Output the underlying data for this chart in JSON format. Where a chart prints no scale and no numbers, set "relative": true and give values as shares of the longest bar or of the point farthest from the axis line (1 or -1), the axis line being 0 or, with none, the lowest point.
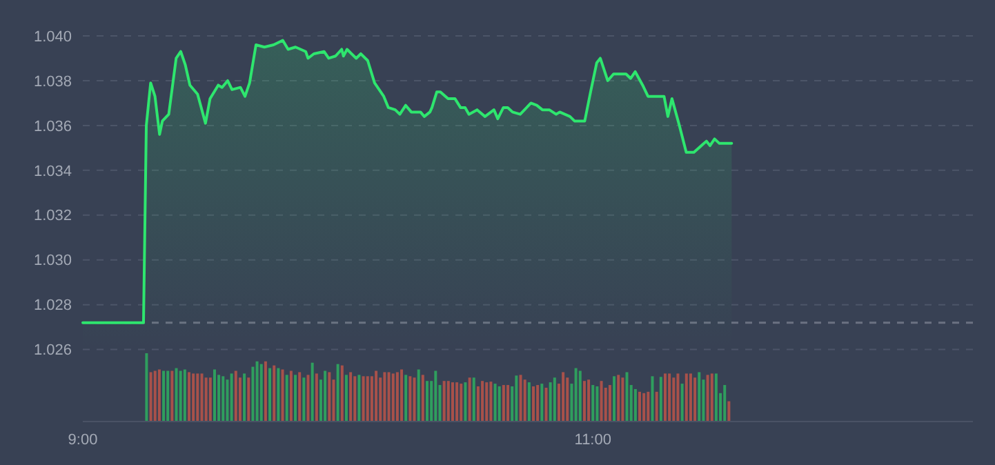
{
  "chart_data": [
    {
      "type": "area",
      "x": [
        9.0,
        9.238,
        9.249,
        9.266,
        9.283,
        9.301,
        9.312,
        9.337,
        9.366,
        9.384,
        9.402,
        9.42,
        9.45,
        9.481,
        9.499,
        9.531,
        9.546,
        9.568,
        9.585,
        9.618,
        9.636,
        9.654,
        9.679,
        9.712,
        9.748,
        9.784,
        9.805,
        9.834,
        9.874,
        9.883,
        9.906,
        9.946,
        9.964,
        9.991,
        10.015,
        10.022,
        10.036,
        10.072,
        10.09,
        10.117,
        10.144,
        10.18,
        10.198,
        10.225,
        10.243,
        10.266,
        10.288,
        10.324,
        10.339,
        10.361,
        10.369,
        10.388,
        10.402,
        10.432,
        10.459,
        10.481,
        10.499,
        10.514,
        10.546,
        10.577,
        10.612,
        10.627,
        10.649,
        10.666,
        10.685,
        10.715,
        10.757,
        10.78,
        10.802,
        10.829,
        10.856,
        10.87,
        10.91,
        10.928,
        10.968,
        10.991,
        11.015,
        11.029,
        11.058,
        11.081,
        11.13,
        11.148,
        11.166,
        11.195,
        11.216,
        11.279,
        11.294,
        11.31,
        11.339,
        11.366,
        11.396,
        11.445,
        11.459,
        11.477,
        11.496,
        11.544
      ],
      "series": [
        {
          "color": "#2ee66e",
          "values": [
            1.0272,
            1.0272,
            1.036,
            1.0379,
            1.0373,
            1.0356,
            1.0362,
            1.0365,
            1.039,
            1.0393,
            1.0387,
            1.0378,
            1.0374,
            1.0361,
            1.0372,
            1.0378,
            1.0377,
            1.038,
            1.0376,
            1.0377,
            1.0373,
            1.0379,
            1.0396,
            1.0395,
            1.0396,
            1.0398,
            1.0394,
            1.0395,
            1.0393,
            1.039,
            1.0392,
            1.0393,
            1.039,
            1.0391,
            1.0394,
            1.0391,
            1.0394,
            1.039,
            1.0392,
            1.0389,
            1.0379,
            1.0373,
            1.0368,
            1.0367,
            1.0365,
            1.0369,
            1.0366,
            1.0366,
            1.0364,
            1.0366,
            1.0368,
            1.0375,
            1.0375,
            1.0372,
            1.0372,
            1.0368,
            1.0368,
            1.0365,
            1.0367,
            1.0364,
            1.0367,
            1.0363,
            1.0368,
            1.0368,
            1.0366,
            1.0365,
            1.037,
            1.0369,
            1.0367,
            1.0367,
            1.0365,
            1.0366,
            1.0364,
            1.0362,
            1.0362,
            1.0375,
            1.0388,
            1.039,
            1.038,
            1.0383,
            1.0383,
            1.0381,
            1.0384,
            1.0378,
            1.0373,
            1.0373,
            1.0364,
            1.0372,
            1.036,
            1.0348,
            1.0348,
            1.0353,
            1.0351,
            1.0354,
            1.0352,
            1.0352
          ]
        }
      ],
      "xlim": [
        9,
        12.49
      ],
      "ylim": [
        1.026,
        1.04
      ],
      "yticks": [
        {
          "value": 1.026,
          "label": "1.026"
        },
        {
          "value": 1.028,
          "label": "1.028"
        },
        {
          "value": 1.03,
          "label": "1.030"
        },
        {
          "value": 1.032,
          "label": "1.032"
        },
        {
          "value": 1.034,
          "label": "1.034"
        },
        {
          "value": 1.036,
          "label": "1.036"
        },
        {
          "value": 1.038,
          "label": "1.038"
        },
        {
          "value": 1.04,
          "label": "1.040"
        }
      ],
      "grid": "y",
      "tick_labels": "y",
      "ref_lines": [
        {
          "axis": "y",
          "value": 1.0272,
          "color": "#6b7282",
          "line_style": "dashed"
        }
      ]
    },
    {
      "type": "bar",
      "relative": true,
      "x": [
        9.25,
        9.2667,
        9.2833,
        9.3,
        9.3167,
        9.3333,
        9.35,
        9.3667,
        9.3833,
        9.4,
        9.4167,
        9.4333,
        9.45,
        9.4667,
        9.4833,
        9.5,
        9.5167,
        9.5333,
        9.55,
        9.5667,
        9.5833,
        9.6,
        9.6167,
        9.6333,
        9.65,
        9.6667,
        9.6833,
        9.7,
        9.7167,
        9.7333,
        9.75,
        9.7667,
        9.7833,
        9.8,
        9.8167,
        9.8333,
        9.85,
        9.8667,
        9.8833,
        9.9,
        9.9167,
        9.9333,
        9.95,
        9.9667,
        9.9833,
        10.0,
        10.0167,
        10.0333,
        10.05,
        10.0667,
        10.0833,
        10.1,
        10.1167,
        10.1333,
        10.15,
        10.1667,
        10.1833,
        10.2,
        10.2167,
        10.2333,
        10.25,
        10.2667,
        10.2833,
        10.3,
        10.3167,
        10.3333,
        10.35,
        10.3667,
        10.3833,
        10.4,
        10.4167,
        10.4333,
        10.45,
        10.4667,
        10.4833,
        10.5,
        10.5167,
        10.5333,
        10.55,
        10.5667,
        10.5833,
        10.6,
        10.6167,
        10.6333,
        10.65,
        10.6667,
        10.6833,
        10.7,
        10.7167,
        10.7333,
        10.75,
        10.7667,
        10.7833,
        10.8,
        10.8167,
        10.8333,
        10.85,
        10.8667,
        10.8833,
        10.9,
        10.9167,
        10.9333,
        10.95,
        10.9667,
        10.9833,
        11.0,
        11.0167,
        11.0333,
        11.05,
        11.0667,
        11.0833,
        11.1,
        11.1167,
        11.1333,
        11.15,
        11.1667,
        11.1833,
        11.2,
        11.2167,
        11.2333,
        11.25,
        11.2667,
        11.2833,
        11.3,
        11.3167,
        11.3333,
        11.35,
        11.3667,
        11.3833,
        11.4,
        11.4167,
        11.4333,
        11.45,
        11.4667,
        11.4833,
        11.5,
        11.5167,
        11.5333
      ],
      "values": [
        1.0,
        0.72,
        0.74,
        0.76,
        0.74,
        0.74,
        0.74,
        0.78,
        0.74,
        0.76,
        0.72,
        0.7,
        0.7,
        0.7,
        0.64,
        0.64,
        0.76,
        0.68,
        0.66,
        0.61,
        0.7,
        0.74,
        0.64,
        0.7,
        0.64,
        0.8,
        0.88,
        0.84,
        0.88,
        0.78,
        0.82,
        0.78,
        0.76,
        0.68,
        0.74,
        0.68,
        0.72,
        0.64,
        0.68,
        0.86,
        0.7,
        0.61,
        0.74,
        0.72,
        0.61,
        0.84,
        0.82,
        0.68,
        0.72,
        0.66,
        0.68,
        0.66,
        0.66,
        0.66,
        0.74,
        0.64,
        0.72,
        0.72,
        0.7,
        0.72,
        0.76,
        0.68,
        0.66,
        0.64,
        0.76,
        0.68,
        0.59,
        0.59,
        0.74,
        0.53,
        0.59,
        0.59,
        0.57,
        0.57,
        0.55,
        0.57,
        0.64,
        0.64,
        0.51,
        0.59,
        0.57,
        0.58,
        0.55,
        0.51,
        0.53,
        0.53,
        0.51,
        0.67,
        0.68,
        0.61,
        0.57,
        0.51,
        0.53,
        0.55,
        0.49,
        0.57,
        0.64,
        0.55,
        0.72,
        0.64,
        0.55,
        0.78,
        0.74,
        0.59,
        0.61,
        0.53,
        0.51,
        0.59,
        0.49,
        0.53,
        0.66,
        0.68,
        0.64,
        0.72,
        0.53,
        0.47,
        0.43,
        0.41,
        0.43,
        0.66,
        0.43,
        0.65,
        0.7,
        0.7,
        0.64,
        0.7,
        0.55,
        0.7,
        0.7,
        0.64,
        0.72,
        0.61,
        0.68,
        0.7,
        0.7,
        0.41,
        0.53,
        0.29
      ],
      "colors": [
        "#2f9e5e",
        "#a8514a",
        "#a8514a",
        "#a8514a",
        "#2f9e5e",
        "#2f9e5e",
        "#a8514a",
        "#2f9e5e",
        "#2f9e5e",
        "#2f9e5e",
        "#a8514a",
        "#a8514a",
        "#a8514a",
        "#a8514a",
        "#a8514a",
        "#a8514a",
        "#2f9e5e",
        "#2f9e5e",
        "#2f9e5e",
        "#2f9e5e",
        "#2f9e5e",
        "#a8514a",
        "#a8514a",
        "#2f9e5e",
        "#a8514a",
        "#2f9e5e",
        "#2f9e5e",
        "#2f9e5e",
        "#a8514a",
        "#2f9e5e",
        "#a8514a",
        "#2f9e5e",
        "#a8514a",
        "#2f9e5e",
        "#a8514a",
        "#2f9e5e",
        "#a8514a",
        "#2f9e5e",
        "#a8514a",
        "#2f9e5e",
        "#a8514a",
        "#2f9e5e",
        "#2f9e5e",
        "#a8514a",
        "#a8514a",
        "#2f9e5e",
        "#a8514a",
        "#2f9e5e",
        "#a8514a",
        "#a8514a",
        "#2f9e5e",
        "#a8514a",
        "#a8514a",
        "#a8514a",
        "#a8514a",
        "#a8514a",
        "#a8514a",
        "#a8514a",
        "#a8514a",
        "#a8514a",
        "#a8514a",
        "#2f9e5e",
        "#a8514a",
        "#a8514a",
        "#2f9e5e",
        "#a8514a",
        "#2f9e5e",
        "#2f9e5e",
        "#2f9e5e",
        "#2f9e5e",
        "#a8514a",
        "#a8514a",
        "#a8514a",
        "#a8514a",
        "#a8514a",
        "#2f9e5e",
        "#a8514a",
        "#2f9e5e",
        "#a8514a",
        "#a8514a",
        "#a8514a",
        "#a8514a",
        "#2f9e5e",
        "#2f9e5e",
        "#a8514a",
        "#a8514a",
        "#2f9e5e",
        "#2f9e5e",
        "#a8514a",
        "#a8514a",
        "#2f9e5e",
        "#a8514a",
        "#a8514a",
        "#2f9e5e",
        "#a8514a",
        "#2f9e5e",
        "#2f9e5e",
        "#a8514a",
        "#a8514a",
        "#a8514a",
        "#2f9e5e",
        "#2f9e5e",
        "#2f9e5e",
        "#a8514a",
        "#a8514a",
        "#2f9e5e",
        "#2f9e5e",
        "#a8514a",
        "#a8514a",
        "#a8514a",
        "#2f9e5e",
        "#a8514a",
        "#a8514a",
        "#2f9e5e",
        "#2f9e5e",
        "#2f9e5e",
        "#a8514a",
        "#a8514a",
        "#a8514a",
        "#2f9e5e",
        "#a8514a",
        "#2f9e5e",
        "#a8514a",
        "#a8514a",
        "#a8514a",
        "#a8514a",
        "#2f9e5e",
        "#a8514a",
        "#a8514a",
        "#a8514a",
        "#2f9e5e",
        "#2f9e5e",
        "#a8514a",
        "#a8514a",
        "#2f9e5e",
        "#2f9e5e",
        "#2f9e5e",
        "#a8514a"
      ],
      "xlim": [
        9,
        12.49
      ],
      "xticks": [
        {
          "value": 9,
          "label": "9:00"
        },
        {
          "value": 11,
          "label": "11:00"
        }
      ],
      "tick_labels": "x"
    }
  ]
}
